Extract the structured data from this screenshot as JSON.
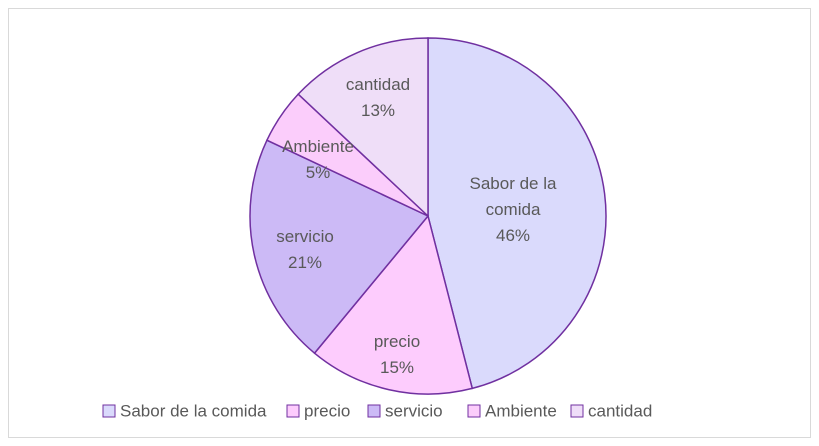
{
  "chart_data": {
    "type": "pie",
    "categories": [
      "Sabor de la comida",
      "precio",
      "servicio",
      "Ambiente",
      "cantidad"
    ],
    "values": [
      46,
      15,
      21,
      5,
      13
    ],
    "value_labels": [
      "46%",
      "15%",
      "21%",
      "5%",
      "13%"
    ],
    "colors": [
      "#dadafc",
      "#fdccfd",
      "#ccbaf6",
      "#fbcdfb",
      "#efdef8"
    ],
    "edge_color": "#7030a0",
    "legend": "bottom"
  }
}
